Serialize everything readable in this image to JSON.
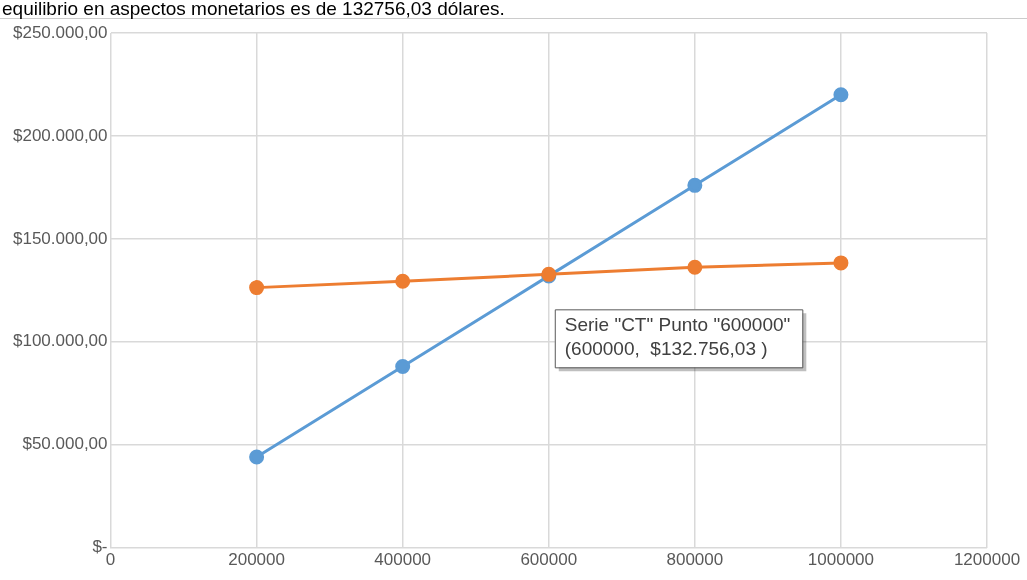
{
  "chart_data": {
    "type": "line",
    "title": "equilibrio en aspectos monetarios es de 132756,03 dólares.",
    "x": [
      200000,
      400000,
      600000,
      800000,
      1000000
    ],
    "series": [
      {
        "color": "#5b9bd5",
        "values": [
          44000,
          88000,
          132000,
          176000,
          220000
        ]
      },
      {
        "color": "#ed7d31",
        "values": [
          126300,
          129400,
          132756.03,
          136200,
          138300
        ]
      }
    ],
    "xlim": [
      0,
      1200000
    ],
    "xticks": [
      0,
      200000,
      400000,
      600000,
      800000,
      1000000,
      1200000
    ],
    "ylim": [
      0,
      250000
    ],
    "yticks": [
      {
        "value": 0,
        "label": "$-"
      },
      {
        "value": 50000,
        "label": "$50.000,00"
      },
      {
        "value": 100000,
        "label": "$100.000,00"
      },
      {
        "value": 150000,
        "label": "$150.000,00"
      },
      {
        "value": 200000,
        "label": "$200.000,00"
      },
      {
        "value": 250000,
        "label": "$250.000,00"
      }
    ],
    "grid": true,
    "legend": false,
    "marker": "circle",
    "line_style": "solid",
    "annotations": [
      {
        "text": "Serie \"CT\" Punto \"600000\"\n(600000,  $132.756,03 )",
        "x": 600000,
        "y": 132756.03
      }
    ]
  }
}
